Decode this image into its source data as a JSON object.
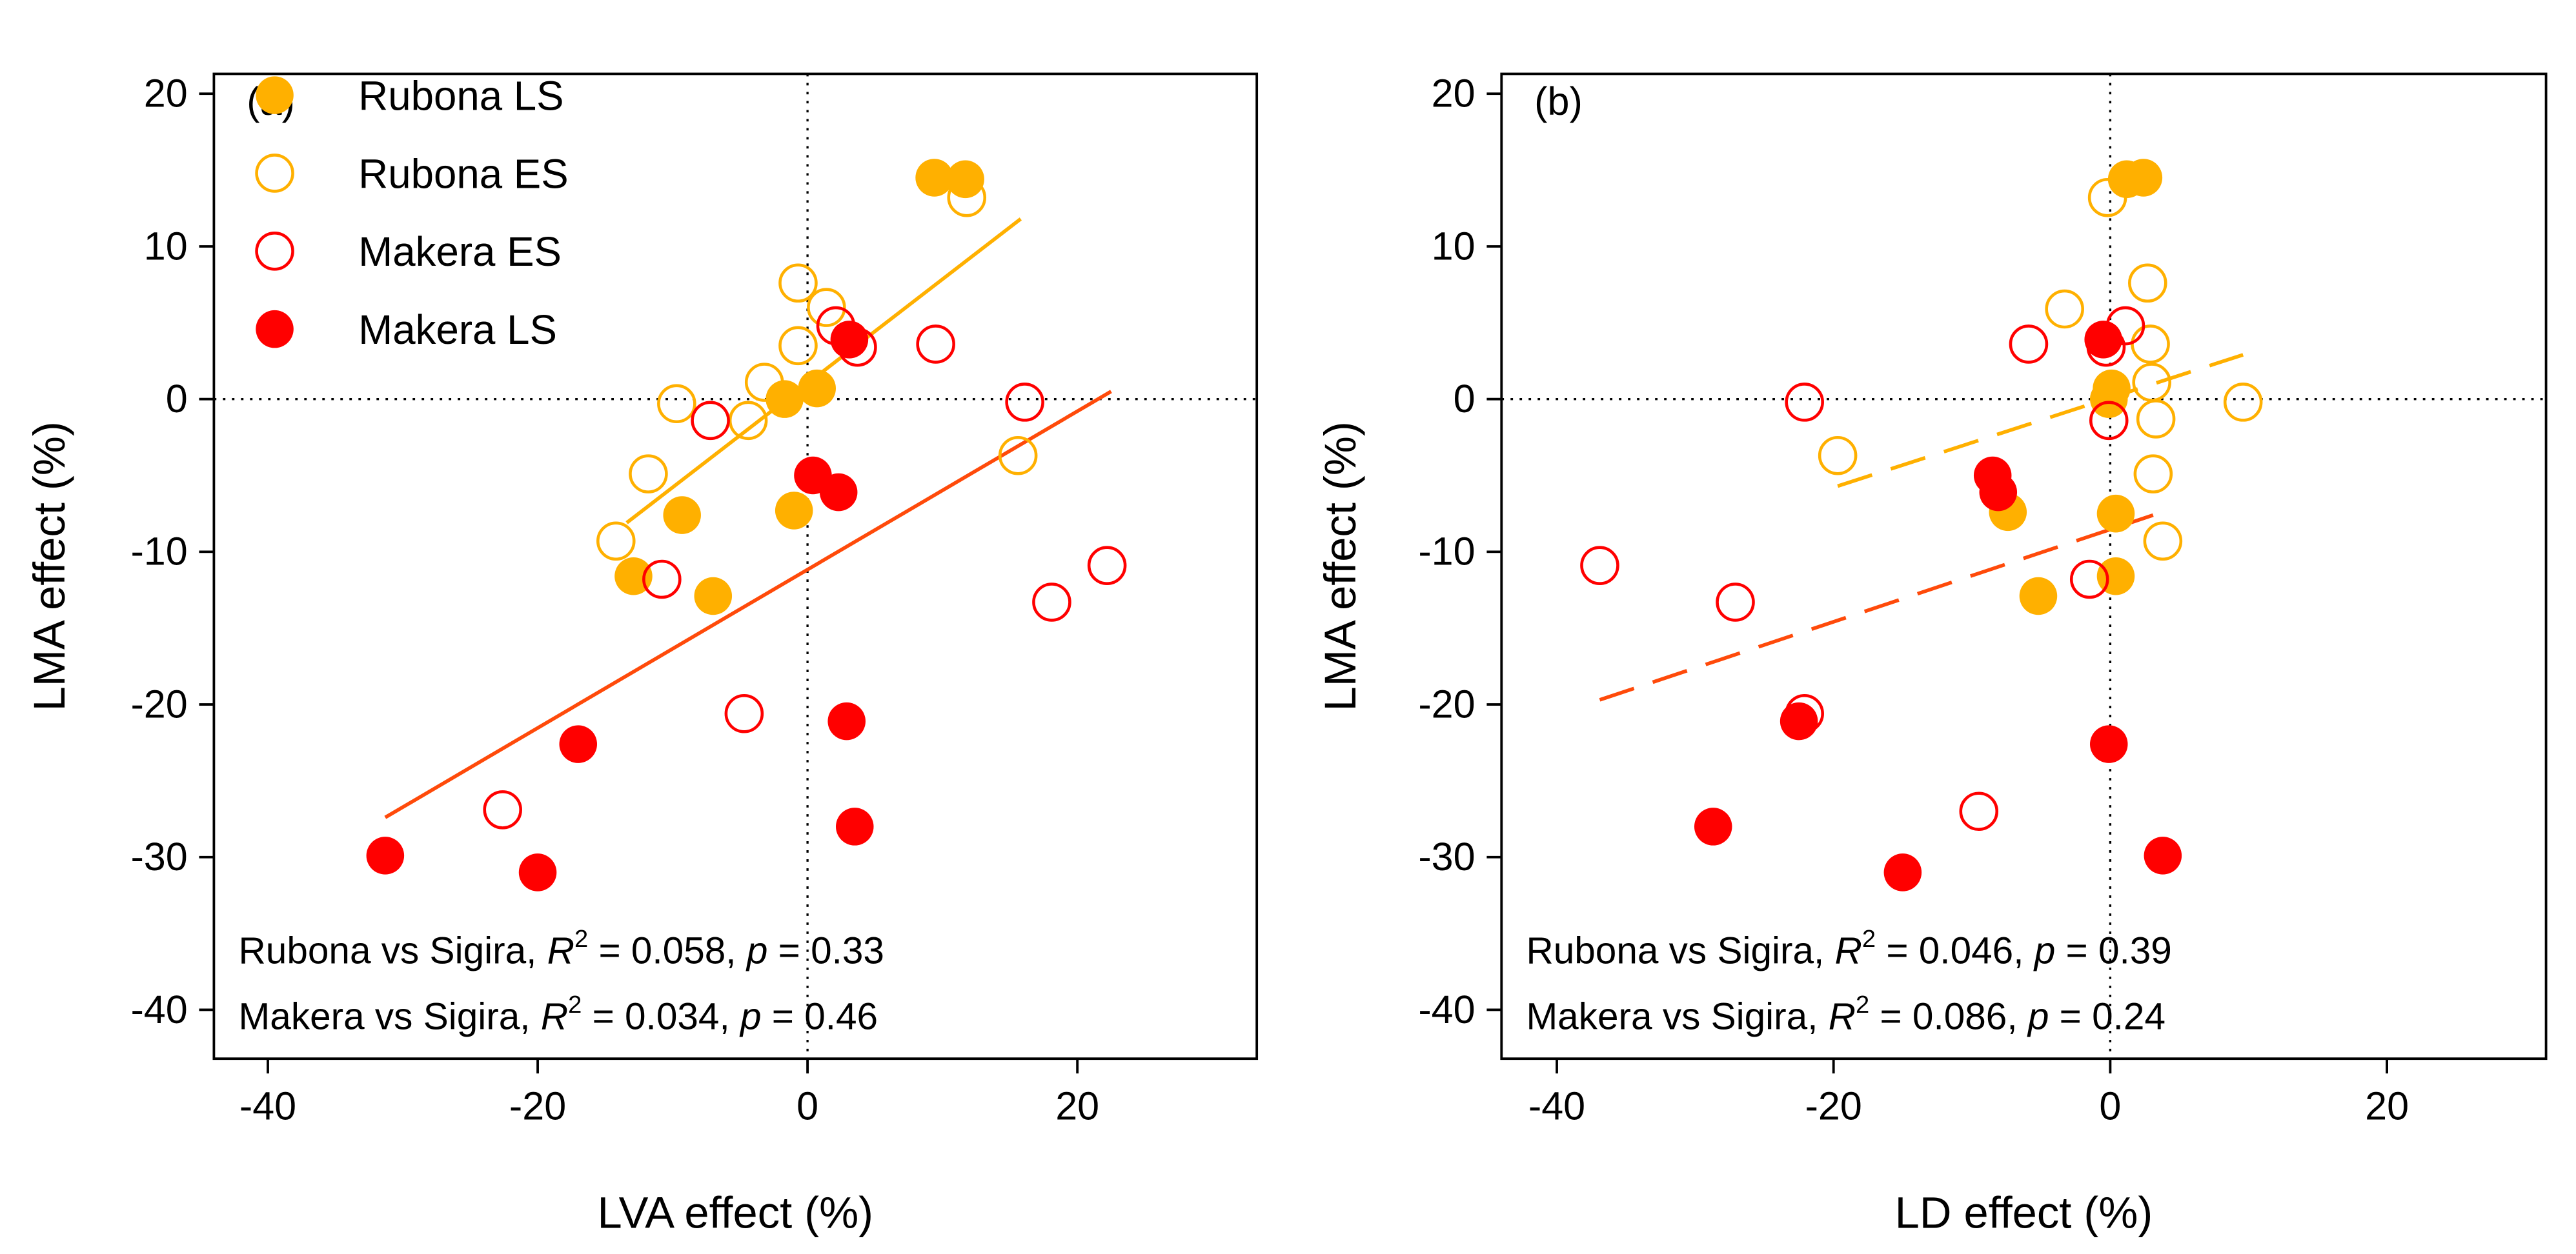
{
  "colors": {
    "orange": "#FFB000",
    "red": "#FF0000",
    "orange_line": "#FFB000",
    "red_line": "#FF4A0A"
  },
  "chart_data": [
    {
      "type": "scatter",
      "panel_label": "(a)",
      "xlabel": "LVA effect (%)",
      "ylabel": "LMA effect (%)",
      "xlim": [
        -44,
        33.3
      ],
      "ylim": [
        -43.2,
        21.3
      ],
      "xticks": [
        -40,
        -20,
        0,
        20
      ],
      "yticks": [
        20,
        10,
        0,
        -10,
        -20,
        -30,
        -40
      ],
      "grid": false,
      "reference_lines": {
        "x": 0,
        "y": 0,
        "style": "dotted"
      },
      "legend": {
        "placement": "top-left",
        "entries": [
          "Rubona LS",
          "Rubona ES",
          "Makera ES",
          "Makera LS"
        ]
      },
      "series": [
        {
          "name": "Rubona LS",
          "color": "orange",
          "filled": true,
          "points": [
            [
              9.4,
              14.5
            ],
            [
              11.7,
              14.4
            ],
            [
              -9.3,
              -7.6
            ],
            [
              -12.9,
              -11.6
            ],
            [
              -7.0,
              -12.9
            ],
            [
              -1.0,
              -7.3
            ],
            [
              0.7,
              0.7
            ],
            [
              -1.7,
              0.0
            ]
          ]
        },
        {
          "name": "Rubona ES",
          "color": "orange",
          "filled": false,
          "points": [
            [
              -0.7,
              7.6
            ],
            [
              1.4,
              6.0
            ],
            [
              -0.7,
              3.5
            ],
            [
              -3.2,
              1.1
            ],
            [
              -9.7,
              -0.3
            ],
            [
              -4.4,
              -1.4
            ],
            [
              -11.8,
              -4.9
            ],
            [
              -14.2,
              -9.3
            ],
            [
              11.8,
              13.2
            ],
            [
              15.6,
              -3.7
            ]
          ]
        },
        {
          "name": "Makera ES",
          "color": "red",
          "filled": false,
          "points": [
            [
              2.1,
              4.8
            ],
            [
              3.7,
              3.4
            ],
            [
              9.5,
              3.6
            ],
            [
              -7.2,
              -1.4
            ],
            [
              16.1,
              -0.2
            ],
            [
              -10.8,
              -11.8
            ],
            [
              18.1,
              -13.3
            ],
            [
              22.2,
              -10.9
            ],
            [
              -4.7,
              -20.6
            ],
            [
              -22.6,
              -26.9
            ]
          ]
        },
        {
          "name": "Makera LS",
          "color": "red",
          "filled": true,
          "points": [
            [
              3.1,
              3.9
            ],
            [
              0.4,
              -5.0
            ],
            [
              2.3,
              -6.1
            ],
            [
              -17.0,
              -22.6
            ],
            [
              2.9,
              -21.1
            ],
            [
              3.5,
              -28.0
            ],
            [
              -31.3,
              -29.9
            ],
            [
              -20.0,
              -31.0
            ]
          ]
        }
      ],
      "fits": [
        {
          "name": "Rubona fit",
          "color": "orange_line",
          "dashed": false,
          "from": [
            -13.4,
            -8.1
          ],
          "to": [
            15.8,
            11.8
          ]
        },
        {
          "name": "Makera fit",
          "color": "red_line",
          "dashed": false,
          "from": [
            -31.3,
            -27.4
          ],
          "to": [
            22.5,
            0.5
          ]
        }
      ],
      "annotations": [
        {
          "label": "Rubona vs Sigira, ",
          "r": "R",
          "exp": "2",
          "r2": " = 0.058, ",
          "p": "p",
          "pval": " = 0.33"
        },
        {
          "label": "Makera vs Sigira, ",
          "r": "R",
          "exp": "2",
          "r2": " = 0.034, ",
          "p": "p",
          "pval": " = 0.46"
        }
      ]
    },
    {
      "type": "scatter",
      "panel_label": "(b)",
      "xlabel": "LD effect (%)",
      "ylabel": "LMA effect (%)",
      "xlim": [
        -44,
        31.5
      ],
      "ylim": [
        -43.2,
        21.3
      ],
      "xticks": [
        -40,
        -20,
        0,
        20
      ],
      "yticks": [
        20,
        10,
        0,
        -10,
        -20,
        -30,
        -40
      ],
      "grid": false,
      "reference_lines": {
        "x": 0,
        "y": 0,
        "style": "dotted"
      },
      "series": [
        {
          "name": "Rubona LS",
          "color": "orange",
          "filled": true,
          "points": [
            [
              1.2,
              14.4
            ],
            [
              2.4,
              14.5
            ],
            [
              0.1,
              0.7
            ],
            [
              -0.1,
              0.0
            ],
            [
              -7.4,
              -7.4
            ],
            [
              0.4,
              -7.5
            ],
            [
              0.4,
              -11.6
            ],
            [
              -5.2,
              -12.9
            ]
          ]
        },
        {
          "name": "Rubona ES",
          "color": "orange",
          "filled": false,
          "points": [
            [
              -0.2,
              13.2
            ],
            [
              2.7,
              7.6
            ],
            [
              -3.3,
              5.9
            ],
            [
              2.9,
              3.6
            ],
            [
              3.0,
              1.1
            ],
            [
              9.6,
              -0.2
            ],
            [
              3.3,
              -1.3
            ],
            [
              -19.7,
              -3.7
            ],
            [
              3.1,
              -4.9
            ],
            [
              3.8,
              -9.3
            ]
          ]
        },
        {
          "name": "Makera ES",
          "color": "red",
          "filled": false,
          "points": [
            [
              1.1,
              4.8
            ],
            [
              -5.9,
              3.6
            ],
            [
              -0.3,
              3.4
            ],
            [
              -22.1,
              -0.2
            ],
            [
              -0.1,
              -1.4
            ],
            [
              -36.9,
              -10.9
            ],
            [
              -27.1,
              -13.3
            ],
            [
              -1.5,
              -11.8
            ],
            [
              -22.1,
              -20.6
            ],
            [
              -9.5,
              -27.0
            ]
          ]
        },
        {
          "name": "Makera LS",
          "color": "red",
          "filled": true,
          "points": [
            [
              -0.5,
              3.9
            ],
            [
              -8.5,
              -5.0
            ],
            [
              -8.1,
              -6.1
            ],
            [
              -22.5,
              -21.1
            ],
            [
              -0.1,
              -22.6
            ],
            [
              -28.7,
              -28.0
            ],
            [
              -15.0,
              -31.0
            ],
            [
              3.8,
              -29.9
            ]
          ]
        }
      ],
      "fits": [
        {
          "name": "Rubona fit",
          "color": "orange_line",
          "dashed": true,
          "from": [
            -19.7,
            -5.7
          ],
          "to": [
            9.6,
            2.9
          ]
        },
        {
          "name": "Makera fit",
          "color": "red_line",
          "dashed": true,
          "from": [
            -36.9,
            -19.7
          ],
          "to": [
            3.1,
            -7.6
          ]
        }
      ],
      "annotations": [
        {
          "label": "Rubona vs Sigira, ",
          "r": "R",
          "exp": "2",
          "r2": " = 0.046, ",
          "p": "p",
          "pval": " = 0.39"
        },
        {
          "label": "Makera vs Sigira, ",
          "r": "R",
          "exp": "2",
          "r2": " = 0.086, ",
          "p": "p",
          "pval": " = 0.24"
        }
      ]
    }
  ]
}
